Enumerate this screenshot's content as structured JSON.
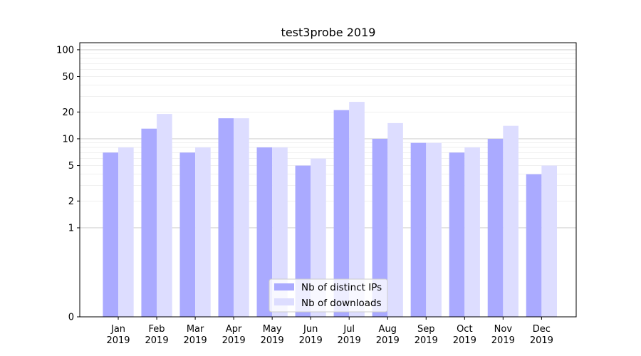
{
  "chart_data": {
    "type": "bar",
    "title": "test3probe 2019",
    "xlabel": "",
    "ylabel": "",
    "yscale": "symlog",
    "ylim": [
      0,
      120
    ],
    "yticks": [
      0,
      1,
      2,
      5,
      10,
      20,
      50,
      100
    ],
    "grid": "y (major and minor)",
    "legend_position": "bottom-center",
    "categories": [
      [
        "Jan",
        "2019"
      ],
      [
        "Feb",
        "2019"
      ],
      [
        "Mar",
        "2019"
      ],
      [
        "Apr",
        "2019"
      ],
      [
        "May",
        "2019"
      ],
      [
        "Jun",
        "2019"
      ],
      [
        "Jul",
        "2019"
      ],
      [
        "Aug",
        "2019"
      ],
      [
        "Sep",
        "2019"
      ],
      [
        "Oct",
        "2019"
      ],
      [
        "Nov",
        "2019"
      ],
      [
        "Dec",
        "2019"
      ]
    ],
    "series": [
      {
        "name": "Nb of distinct IPs",
        "color": "#aaaaff",
        "values": [
          7,
          13,
          7,
          17,
          8,
          5,
          21,
          10,
          9,
          7,
          10,
          4
        ]
      },
      {
        "name": "Nb of downloads",
        "color": "#ddddff",
        "values": [
          8,
          19,
          8,
          17,
          8,
          6,
          26,
          15,
          9,
          8,
          14,
          5
        ]
      }
    ]
  }
}
